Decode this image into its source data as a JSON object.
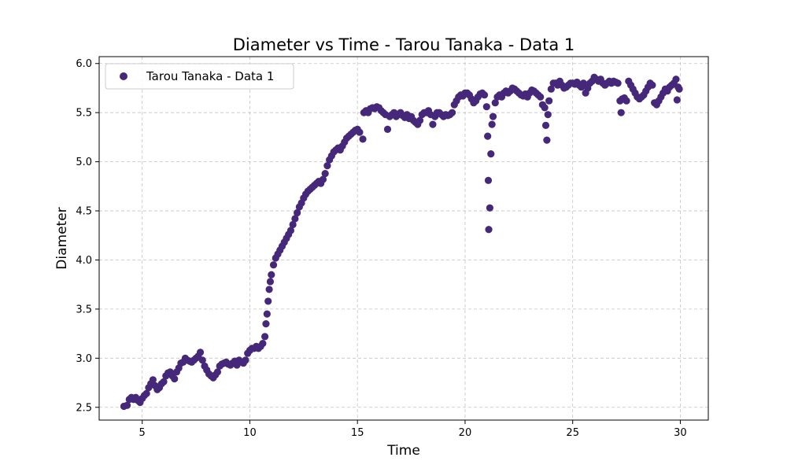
{
  "chart_data": {
    "type": "scatter",
    "title": "Diameter vs Time - Tarou Tanaka - Data 1",
    "xlabel": "Time",
    "ylabel": "Diameter",
    "xlim": [
      3.0,
      31.3
    ],
    "ylim": [
      2.37,
      6.07
    ],
    "xticks": [
      5,
      10,
      15,
      20,
      25,
      30
    ],
    "yticks": [
      2.5,
      3.0,
      3.5,
      4.0,
      4.5,
      5.0,
      5.5,
      6.0
    ],
    "grid": true,
    "legend_position": "top-left",
    "colors": {
      "series": "#46287a"
    },
    "series": [
      {
        "name": "Tarou Tanaka - Data 1",
        "points": [
          [
            4.15,
            2.51
          ],
          [
            4.3,
            2.52
          ],
          [
            4.4,
            2.58
          ],
          [
            4.5,
            2.6
          ],
          [
            4.6,
            2.58
          ],
          [
            4.7,
            2.6
          ],
          [
            4.8,
            2.57
          ],
          [
            4.9,
            2.55
          ],
          [
            5.0,
            2.59
          ],
          [
            5.1,
            2.62
          ],
          [
            5.2,
            2.64
          ],
          [
            5.3,
            2.7
          ],
          [
            5.4,
            2.74
          ],
          [
            5.5,
            2.78
          ],
          [
            5.6,
            2.72
          ],
          [
            5.7,
            2.68
          ],
          [
            5.8,
            2.7
          ],
          [
            5.9,
            2.74
          ],
          [
            6.0,
            2.76
          ],
          [
            6.1,
            2.82
          ],
          [
            6.2,
            2.85
          ],
          [
            6.3,
            2.86
          ],
          [
            6.4,
            2.82
          ],
          [
            6.5,
            2.79
          ],
          [
            6.6,
            2.86
          ],
          [
            6.7,
            2.9
          ],
          [
            6.8,
            2.95
          ],
          [
            6.9,
            2.96
          ],
          [
            7.0,
            3.0
          ],
          [
            7.1,
            2.98
          ],
          [
            7.2,
            2.97
          ],
          [
            7.3,
            2.96
          ],
          [
            7.4,
            2.98
          ],
          [
            7.5,
            3.0
          ],
          [
            7.6,
            3.02
          ],
          [
            7.7,
            3.06
          ],
          [
            7.8,
            2.98
          ],
          [
            7.9,
            2.92
          ],
          [
            8.0,
            2.88
          ],
          [
            8.1,
            2.84
          ],
          [
            8.2,
            2.82
          ],
          [
            8.3,
            2.8
          ],
          [
            8.4,
            2.83
          ],
          [
            8.5,
            2.86
          ],
          [
            8.6,
            2.92
          ],
          [
            8.7,
            2.94
          ],
          [
            8.8,
            2.95
          ],
          [
            8.9,
            2.96
          ],
          [
            9.0,
            2.94
          ],
          [
            9.1,
            2.93
          ],
          [
            9.2,
            2.95
          ],
          [
            9.3,
            2.97
          ],
          [
            9.4,
            2.93
          ],
          [
            9.5,
            2.98
          ],
          [
            9.6,
            2.96
          ],
          [
            9.7,
            2.95
          ],
          [
            9.8,
            2.98
          ],
          [
            9.9,
            3.05
          ],
          [
            10.0,
            3.08
          ],
          [
            10.1,
            3.1
          ],
          [
            10.2,
            3.1
          ],
          [
            10.3,
            3.12
          ],
          [
            10.4,
            3.1
          ],
          [
            10.5,
            3.12
          ],
          [
            10.6,
            3.15
          ],
          [
            10.7,
            3.22
          ],
          [
            10.75,
            3.35
          ],
          [
            10.8,
            3.45
          ],
          [
            10.85,
            3.58
          ],
          [
            10.9,
            3.7
          ],
          [
            10.95,
            3.78
          ],
          [
            11.0,
            3.85
          ],
          [
            11.1,
            3.95
          ],
          [
            11.2,
            4.02
          ],
          [
            11.3,
            4.06
          ],
          [
            11.4,
            4.1
          ],
          [
            11.5,
            4.14
          ],
          [
            11.6,
            4.18
          ],
          [
            11.7,
            4.22
          ],
          [
            11.8,
            4.26
          ],
          [
            11.9,
            4.3
          ],
          [
            12.0,
            4.36
          ],
          [
            12.1,
            4.42
          ],
          [
            12.2,
            4.48
          ],
          [
            12.3,
            4.54
          ],
          [
            12.4,
            4.58
          ],
          [
            12.5,
            4.63
          ],
          [
            12.6,
            4.67
          ],
          [
            12.7,
            4.7
          ],
          [
            12.8,
            4.72
          ],
          [
            12.9,
            4.74
          ],
          [
            13.0,
            4.76
          ],
          [
            13.1,
            4.78
          ],
          [
            13.2,
            4.8
          ],
          [
            13.3,
            4.78
          ],
          [
            13.4,
            4.82
          ],
          [
            13.5,
            4.88
          ],
          [
            13.6,
            4.96
          ],
          [
            13.7,
            5.02
          ],
          [
            13.8,
            5.06
          ],
          [
            13.9,
            5.1
          ],
          [
            14.0,
            5.12
          ],
          [
            14.1,
            5.14
          ],
          [
            14.2,
            5.12
          ],
          [
            14.3,
            5.16
          ],
          [
            14.4,
            5.2
          ],
          [
            14.5,
            5.24
          ],
          [
            14.6,
            5.26
          ],
          [
            14.7,
            5.28
          ],
          [
            14.8,
            5.3
          ],
          [
            14.9,
            5.32
          ],
          [
            15.0,
            5.33
          ],
          [
            15.1,
            5.3
          ],
          [
            15.25,
            5.23
          ],
          [
            15.3,
            5.5
          ],
          [
            15.4,
            5.52
          ],
          [
            15.5,
            5.5
          ],
          [
            15.6,
            5.54
          ],
          [
            15.7,
            5.55
          ],
          [
            15.8,
            5.54
          ],
          [
            15.9,
            5.56
          ],
          [
            16.0,
            5.55
          ],
          [
            16.1,
            5.52
          ],
          [
            16.2,
            5.5
          ],
          [
            16.3,
            5.48
          ],
          [
            16.4,
            5.33
          ],
          [
            16.5,
            5.46
          ],
          [
            16.6,
            5.48
          ],
          [
            16.7,
            5.5
          ],
          [
            16.8,
            5.46
          ],
          [
            16.9,
            5.48
          ],
          [
            17.0,
            5.5
          ],
          [
            17.1,
            5.47
          ],
          [
            17.2,
            5.45
          ],
          [
            17.3,
            5.48
          ],
          [
            17.4,
            5.44
          ],
          [
            17.5,
            5.46
          ],
          [
            17.6,
            5.42
          ],
          [
            17.7,
            5.4
          ],
          [
            17.8,
            5.38
          ],
          [
            17.9,
            5.42
          ],
          [
            18.0,
            5.48
          ],
          [
            18.1,
            5.5
          ],
          [
            18.2,
            5.5
          ],
          [
            18.3,
            5.52
          ],
          [
            18.4,
            5.48
          ],
          [
            18.5,
            5.38
          ],
          [
            18.6,
            5.46
          ],
          [
            18.7,
            5.5
          ],
          [
            18.8,
            5.5
          ],
          [
            18.9,
            5.48
          ],
          [
            19.0,
            5.46
          ],
          [
            19.1,
            5.48
          ],
          [
            19.2,
            5.47
          ],
          [
            19.3,
            5.48
          ],
          [
            19.4,
            5.5
          ],
          [
            19.5,
            5.58
          ],
          [
            19.6,
            5.62
          ],
          [
            19.7,
            5.66
          ],
          [
            19.8,
            5.68
          ],
          [
            19.9,
            5.67
          ],
          [
            20.0,
            5.7
          ],
          [
            20.1,
            5.7
          ],
          [
            20.2,
            5.68
          ],
          [
            20.3,
            5.64
          ],
          [
            20.4,
            5.6
          ],
          [
            20.5,
            5.62
          ],
          [
            20.6,
            5.66
          ],
          [
            20.7,
            5.69
          ],
          [
            20.8,
            5.7
          ],
          [
            20.9,
            5.68
          ],
          [
            21.0,
            5.56
          ],
          [
            21.05,
            5.26
          ],
          [
            21.08,
            4.81
          ],
          [
            21.1,
            4.31
          ],
          [
            21.15,
            4.53
          ],
          [
            21.2,
            5.08
          ],
          [
            21.25,
            5.38
          ],
          [
            21.3,
            5.46
          ],
          [
            21.4,
            5.6
          ],
          [
            21.5,
            5.66
          ],
          [
            21.6,
            5.68
          ],
          [
            21.7,
            5.66
          ],
          [
            21.8,
            5.7
          ],
          [
            21.9,
            5.72
          ],
          [
            22.0,
            5.7
          ],
          [
            22.1,
            5.72
          ],
          [
            22.2,
            5.75
          ],
          [
            22.3,
            5.74
          ],
          [
            22.4,
            5.72
          ],
          [
            22.5,
            5.7
          ],
          [
            22.6,
            5.68
          ],
          [
            22.7,
            5.67
          ],
          [
            22.8,
            5.69
          ],
          [
            22.9,
            5.66
          ],
          [
            23.0,
            5.7
          ],
          [
            23.1,
            5.73
          ],
          [
            23.2,
            5.72
          ],
          [
            23.3,
            5.7
          ],
          [
            23.4,
            5.68
          ],
          [
            23.5,
            5.66
          ],
          [
            23.6,
            5.58
          ],
          [
            23.7,
            5.55
          ],
          [
            23.75,
            5.37
          ],
          [
            23.8,
            5.22
          ],
          [
            23.85,
            5.48
          ],
          [
            23.9,
            5.62
          ],
          [
            24.0,
            5.74
          ],
          [
            24.1,
            5.8
          ],
          [
            24.2,
            5.8
          ],
          [
            24.3,
            5.78
          ],
          [
            24.4,
            5.82
          ],
          [
            24.5,
            5.78
          ],
          [
            24.6,
            5.75
          ],
          [
            24.7,
            5.76
          ],
          [
            24.8,
            5.78
          ],
          [
            24.9,
            5.8
          ],
          [
            25.0,
            5.8
          ],
          [
            25.1,
            5.79
          ],
          [
            25.2,
            5.81
          ],
          [
            25.3,
            5.78
          ],
          [
            25.4,
            5.76
          ],
          [
            25.5,
            5.8
          ],
          [
            25.6,
            5.7
          ],
          [
            25.7,
            5.75
          ],
          [
            25.8,
            5.8
          ],
          [
            25.9,
            5.82
          ],
          [
            26.0,
            5.86
          ],
          [
            26.1,
            5.84
          ],
          [
            26.2,
            5.82
          ],
          [
            26.3,
            5.84
          ],
          [
            26.4,
            5.8
          ],
          [
            26.5,
            5.78
          ],
          [
            26.6,
            5.8
          ],
          [
            26.7,
            5.82
          ],
          [
            26.8,
            5.8
          ],
          [
            26.9,
            5.82
          ],
          [
            27.0,
            5.81
          ],
          [
            27.1,
            5.8
          ],
          [
            27.2,
            5.62
          ],
          [
            27.25,
            5.5
          ],
          [
            27.3,
            5.64
          ],
          [
            27.4,
            5.65
          ],
          [
            27.5,
            5.62
          ],
          [
            27.6,
            5.82
          ],
          [
            27.7,
            5.78
          ],
          [
            27.8,
            5.74
          ],
          [
            27.9,
            5.7
          ],
          [
            28.0,
            5.66
          ],
          [
            28.1,
            5.64
          ],
          [
            28.2,
            5.66
          ],
          [
            28.3,
            5.68
          ],
          [
            28.4,
            5.72
          ],
          [
            28.5,
            5.76
          ],
          [
            28.6,
            5.8
          ],
          [
            28.7,
            5.78
          ],
          [
            28.8,
            5.6
          ],
          [
            28.9,
            5.58
          ],
          [
            29.0,
            5.62
          ],
          [
            29.1,
            5.66
          ],
          [
            29.2,
            5.7
          ],
          [
            29.3,
            5.74
          ],
          [
            29.4,
            5.72
          ],
          [
            29.5,
            5.76
          ],
          [
            29.6,
            5.78
          ],
          [
            29.7,
            5.8
          ],
          [
            29.8,
            5.84
          ],
          [
            29.85,
            5.63
          ],
          [
            29.9,
            5.76
          ],
          [
            29.95,
            5.74
          ]
        ]
      }
    ]
  }
}
